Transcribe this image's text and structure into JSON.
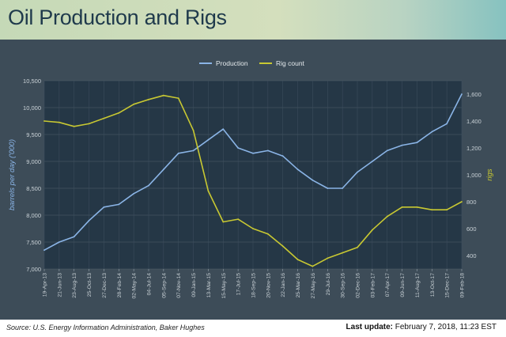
{
  "header": {
    "title": "Oil Production and Rigs"
  },
  "footer": {
    "source": "Source: U.S. Energy Information Administration, Baker Hughes",
    "last_update_label": "Last update:",
    "last_update_value": "February 7, 2018, 11:23 EST"
  },
  "colors": {
    "production": "#8ab4e6",
    "rigs": "#c8c832",
    "plot_bg": "#253746",
    "panel_bg": "#3d4c58"
  },
  "chart_data": {
    "type": "line",
    "title": "",
    "xlabel": "",
    "ylabel": "barrels per day ('000)",
    "y2label": "rigs",
    "legend_position": "top-center",
    "grid": true,
    "ylim": [
      7000,
      10500
    ],
    "y2lim": [
      300,
      1700
    ],
    "y_ticks": [
      7000,
      7500,
      8000,
      8500,
      9000,
      9500,
      10000,
      10500
    ],
    "y_tick_labels": [
      "7,000",
      "7,500",
      "8,000",
      "8,500",
      "9,000",
      "9,500",
      "10,000",
      "10,500"
    ],
    "y2_ticks": [
      400,
      600,
      800,
      1000,
      1200,
      1400,
      1600
    ],
    "y2_tick_labels": [
      "400",
      "600",
      "800",
      "1,000",
      "1,200",
      "1,400",
      "1,600"
    ],
    "x_ticks": [
      "19-Apr-13",
      "21-Jun-13",
      "23-Aug-13",
      "25-Oct-13",
      "27-Dec-13",
      "28-Feb-14",
      "02-May-14",
      "04-Jul-14",
      "05-Sep-14",
      "07-Nov-14",
      "09-Jan-15",
      "13-Mar-15",
      "15-May-15",
      "17-Jul-15",
      "18-Sep-15",
      "20-Nov-15",
      "22-Jan-16",
      "25-Mar-16",
      "27-May-16",
      "29-Jul-16",
      "30-Sep-16",
      "02-Dec-16",
      "03-Feb-17",
      "07-Apr-17",
      "09-Jun-17",
      "11-Aug-17",
      "13-Oct-17",
      "15-Dec-17",
      "09-Feb-18"
    ],
    "x": [
      "19-Apr-13",
      "21-Jun-13",
      "23-Aug-13",
      "25-Oct-13",
      "27-Dec-13",
      "28-Feb-14",
      "02-May-14",
      "04-Jul-14",
      "05-Sep-14",
      "07-Nov-14",
      "09-Jan-15",
      "13-Mar-15",
      "15-May-15",
      "17-Jul-15",
      "18-Sep-15",
      "20-Nov-15",
      "22-Jan-16",
      "25-Mar-16",
      "27-May-16",
      "29-Jul-16",
      "30-Sep-16",
      "02-Dec-16",
      "03-Feb-17",
      "07-Apr-17",
      "09-Jun-17",
      "11-Aug-17",
      "13-Oct-17",
      "15-Dec-17",
      "09-Feb-18"
    ],
    "series": [
      {
        "name": "Production",
        "axis": "left",
        "values": [
          7350,
          7500,
          7600,
          7900,
          8150,
          8200,
          8400,
          8550,
          8850,
          9150,
          9200,
          9400,
          9600,
          9250,
          9150,
          9200,
          9100,
          8850,
          8650,
          8500,
          8500,
          8800,
          9000,
          9200,
          9300,
          9350,
          9550,
          9700,
          10250
        ]
      },
      {
        "name": "Rig count",
        "axis": "right",
        "values": [
          1400,
          1390,
          1360,
          1380,
          1420,
          1460,
          1525,
          1560,
          1590,
          1570,
          1330,
          880,
          650,
          670,
          600,
          560,
          470,
          370,
          320,
          380,
          420,
          460,
          590,
          690,
          760,
          760,
          740,
          740,
          800
        ]
      }
    ]
  }
}
